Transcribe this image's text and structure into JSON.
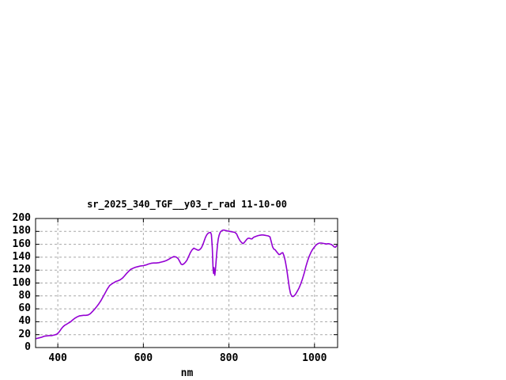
{
  "window": {
    "background": "#ffffff"
  },
  "colors": {
    "line": "#9400d3",
    "grid": "#a8a8a8",
    "axis": "#000000",
    "text": "#000000",
    "background": "#ffffff"
  },
  "chart_data": {
    "type": "line",
    "title": "sr_2025_340_TGF__y03_r_rad 11-10-00",
    "xlabel": "nm",
    "ylabel": "",
    "legend": "none",
    "grid": true,
    "xlim": [
      348,
      1054
    ],
    "ylim": [
      0,
      200
    ],
    "xticks": [
      400,
      600,
      800,
      1000
    ],
    "yticks": [
      0,
      20,
      40,
      60,
      80,
      100,
      120,
      140,
      160,
      180,
      200
    ],
    "series": [
      {
        "name": "sr_2025_340_TGF__y03_r_rad",
        "points": [
          [
            350,
            14
          ],
          [
            356,
            15
          ],
          [
            362,
            16
          ],
          [
            368,
            17.5
          ],
          [
            374,
            18
          ],
          [
            380,
            18.5
          ],
          [
            386,
            18.5
          ],
          [
            392,
            19.5
          ],
          [
            397,
            20.5
          ],
          [
            400,
            22
          ],
          [
            404,
            25
          ],
          [
            408,
            29
          ],
          [
            412,
            32
          ],
          [
            416,
            34.5
          ],
          [
            420,
            36
          ],
          [
            425,
            38
          ],
          [
            430,
            40
          ],
          [
            435,
            43
          ],
          [
            440,
            45.5
          ],
          [
            445,
            47.5
          ],
          [
            450,
            49
          ],
          [
            455,
            49.5
          ],
          [
            460,
            50
          ],
          [
            466,
            50
          ],
          [
            471,
            50.5
          ],
          [
            476,
            52.5
          ],
          [
            481,
            56
          ],
          [
            486,
            59.5
          ],
          [
            491,
            63.5
          ],
          [
            496,
            68
          ],
          [
            501,
            73
          ],
          [
            506,
            79
          ],
          [
            511,
            85
          ],
          [
            516,
            91
          ],
          [
            521,
            96
          ],
          [
            526,
            98.5
          ],
          [
            531,
            100.5
          ],
          [
            536,
            102.5
          ],
          [
            541,
            103.5
          ],
          [
            546,
            105
          ],
          [
            551,
            107.5
          ],
          [
            556,
            111
          ],
          [
            561,
            115
          ],
          [
            566,
            118.5
          ],
          [
            571,
            121.5
          ],
          [
            576,
            123
          ],
          [
            582,
            124.5
          ],
          [
            588,
            125.5
          ],
          [
            594,
            126.5
          ],
          [
            600,
            127
          ],
          [
            606,
            128
          ],
          [
            612,
            129.5
          ],
          [
            618,
            130.5
          ],
          [
            624,
            131
          ],
          [
            630,
            131
          ],
          [
            636,
            131.5
          ],
          [
            642,
            132.5
          ],
          [
            648,
            133.5
          ],
          [
            654,
            135
          ],
          [
            660,
            137
          ],
          [
            666,
            139.5
          ],
          [
            671,
            141
          ],
          [
            676,
            140.5
          ],
          [
            681,
            138
          ],
          [
            685,
            133.5
          ],
          [
            688,
            129.5
          ],
          [
            691,
            128.5
          ],
          [
            694,
            129.5
          ],
          [
            698,
            132
          ],
          [
            702,
            135.5
          ],
          [
            706,
            141.5
          ],
          [
            710,
            147.5
          ],
          [
            714,
            151.5
          ],
          [
            718,
            154
          ],
          [
            721,
            153
          ],
          [
            724,
            152
          ],
          [
            727,
            151
          ],
          [
            730,
            151
          ],
          [
            733,
            152.5
          ],
          [
            736,
            155
          ],
          [
            739,
            159.5
          ],
          [
            742,
            165
          ],
          [
            745,
            170.5
          ],
          [
            748,
            174.5
          ],
          [
            751,
            177
          ],
          [
            754,
            178
          ],
          [
            757,
            178.5
          ],
          [
            759,
            175
          ],
          [
            761,
            155
          ],
          [
            763,
            122
          ],
          [
            764,
            115
          ],
          [
            765,
            124
          ],
          [
            766,
            116
          ],
          [
            767,
            112
          ],
          [
            769,
            125
          ],
          [
            771,
            143
          ],
          [
            773,
            158
          ],
          [
            775,
            168
          ],
          [
            777,
            174
          ],
          [
            780,
            179
          ],
          [
            783,
            181
          ],
          [
            786,
            182
          ],
          [
            789,
            182
          ],
          [
            792,
            181.5
          ],
          [
            795,
            181
          ],
          [
            798,
            180.5
          ],
          [
            802,
            180
          ],
          [
            806,
            179.5
          ],
          [
            810,
            179
          ],
          [
            814,
            178.5
          ],
          [
            818,
            176
          ],
          [
            822,
            170
          ],
          [
            826,
            165.5
          ],
          [
            830,
            162.5
          ],
          [
            833,
            161
          ],
          [
            836,
            163
          ],
          [
            839,
            165.5
          ],
          [
            842,
            168
          ],
          [
            845,
            169.5
          ],
          [
            848,
            169.5
          ],
          [
            851,
            168.5
          ],
          [
            854,
            168.5
          ],
          [
            857,
            170.5
          ],
          [
            860,
            171.5
          ],
          [
            864,
            172.5
          ],
          [
            868,
            173.5
          ],
          [
            872,
            174
          ],
          [
            876,
            174.5
          ],
          [
            880,
            174.5
          ],
          [
            884,
            174
          ],
          [
            888,
            173.5
          ],
          [
            892,
            173
          ],
          [
            896,
            171.5
          ],
          [
            899,
            164
          ],
          [
            902,
            156
          ],
          [
            905,
            152.5
          ],
          [
            908,
            151.5
          ],
          [
            911,
            149
          ],
          [
            914,
            146.5
          ],
          [
            917,
            144
          ],
          [
            920,
            144.5
          ],
          [
            923,
            146.5
          ],
          [
            926,
            147
          ],
          [
            929,
            141.5
          ],
          [
            932,
            133
          ],
          [
            935,
            122
          ],
          [
            938,
            108
          ],
          [
            941,
            93
          ],
          [
            944,
            83.5
          ],
          [
            947,
            79.5
          ],
          [
            950,
            79
          ],
          [
            953,
            80.5
          ],
          [
            956,
            83
          ],
          [
            960,
            87.5
          ],
          [
            964,
            92.5
          ],
          [
            968,
            99
          ],
          [
            972,
            106.5
          ],
          [
            976,
            115.5
          ],
          [
            980,
            126
          ],
          [
            984,
            134.5
          ],
          [
            988,
            142
          ],
          [
            992,
            148
          ],
          [
            996,
            152.5
          ],
          [
            1000,
            156
          ],
          [
            1004,
            159
          ],
          [
            1008,
            161
          ],
          [
            1012,
            162
          ],
          [
            1016,
            162
          ],
          [
            1020,
            161.5
          ],
          [
            1024,
            161
          ],
          [
            1028,
            160.5
          ],
          [
            1032,
            161
          ],
          [
            1036,
            160.5
          ],
          [
            1040,
            159.5
          ],
          [
            1043,
            158
          ],
          [
            1046,
            156
          ],
          [
            1049,
            155.5
          ],
          [
            1052,
            158
          ]
        ]
      }
    ]
  }
}
